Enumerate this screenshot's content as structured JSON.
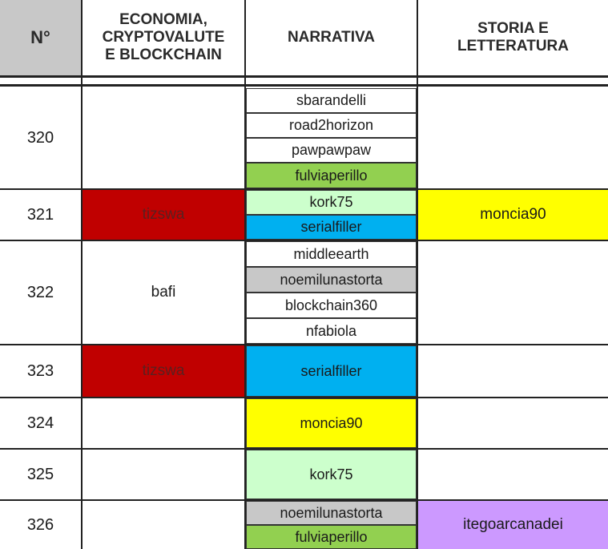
{
  "columns": {
    "num": "N°",
    "economia": "ECONOMIA,\nCRYPTOVALUTE\nE BLOCKCHAIN",
    "narrativa": "NARRATIVA",
    "storia": "STORIA E\nLETTERATURA"
  },
  "rows": [
    {
      "n": "320",
      "economia": "",
      "narrativa": [
        "sbarandelli",
        "road2horizon",
        "pawpawpaw",
        "fulviaperillo"
      ],
      "storia": ""
    },
    {
      "n": "321",
      "economia": "tizswa",
      "narrativa": [
        "kork75",
        "serialfiller"
      ],
      "storia": "moncia90"
    },
    {
      "n": "322",
      "economia": "bafi",
      "narrativa": [
        "middleearth",
        "noemilunastorta",
        "blockchain360",
        "nfabiola"
      ],
      "storia": ""
    },
    {
      "n": "323",
      "economia": "tizswa",
      "narrativa": [
        "serialfiller"
      ],
      "storia": ""
    },
    {
      "n": "324",
      "economia": "",
      "narrativa": [
        "moncia90"
      ],
      "storia": ""
    },
    {
      "n": "325",
      "economia": "",
      "narrativa": [
        "kork75"
      ],
      "storia": ""
    },
    {
      "n": "326",
      "economia": "",
      "narrativa": [
        "noemilunastorta",
        "fulviaperillo"
      ],
      "storia": "itegoarcanadei"
    }
  ],
  "colors": {
    "red": "#c00000",
    "yellow": "#ffff00",
    "light_green": "#ccffcc",
    "blue": "#00b0f0",
    "green": "#92d050",
    "grey": "#c8c8c8",
    "violet": "#cc99ff"
  }
}
